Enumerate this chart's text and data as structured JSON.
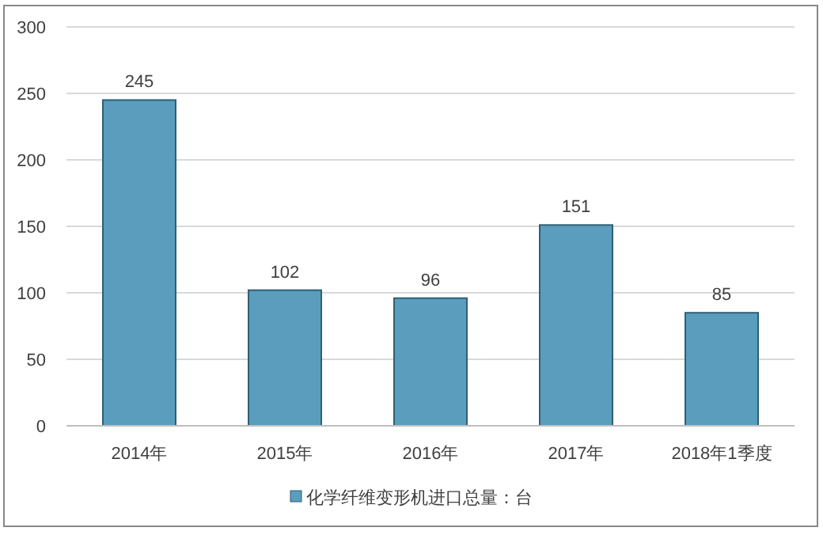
{
  "chart_data": {
    "type": "bar",
    "categories": [
      "2014年",
      "2015年",
      "2016年",
      "2017年",
      "2018年1季度"
    ],
    "series": [
      {
        "name": "化学纤维变形机进口总量：台",
        "color": "#5a9dbd",
        "values": [
          245,
          102,
          96,
          151,
          85
        ]
      }
    ],
    "ylim": [
      0,
      300
    ],
    "yticks": [
      0,
      50,
      100,
      150,
      200,
      250,
      300
    ],
    "grid": "y",
    "legend": "bottom",
    "data_labels": true
  }
}
